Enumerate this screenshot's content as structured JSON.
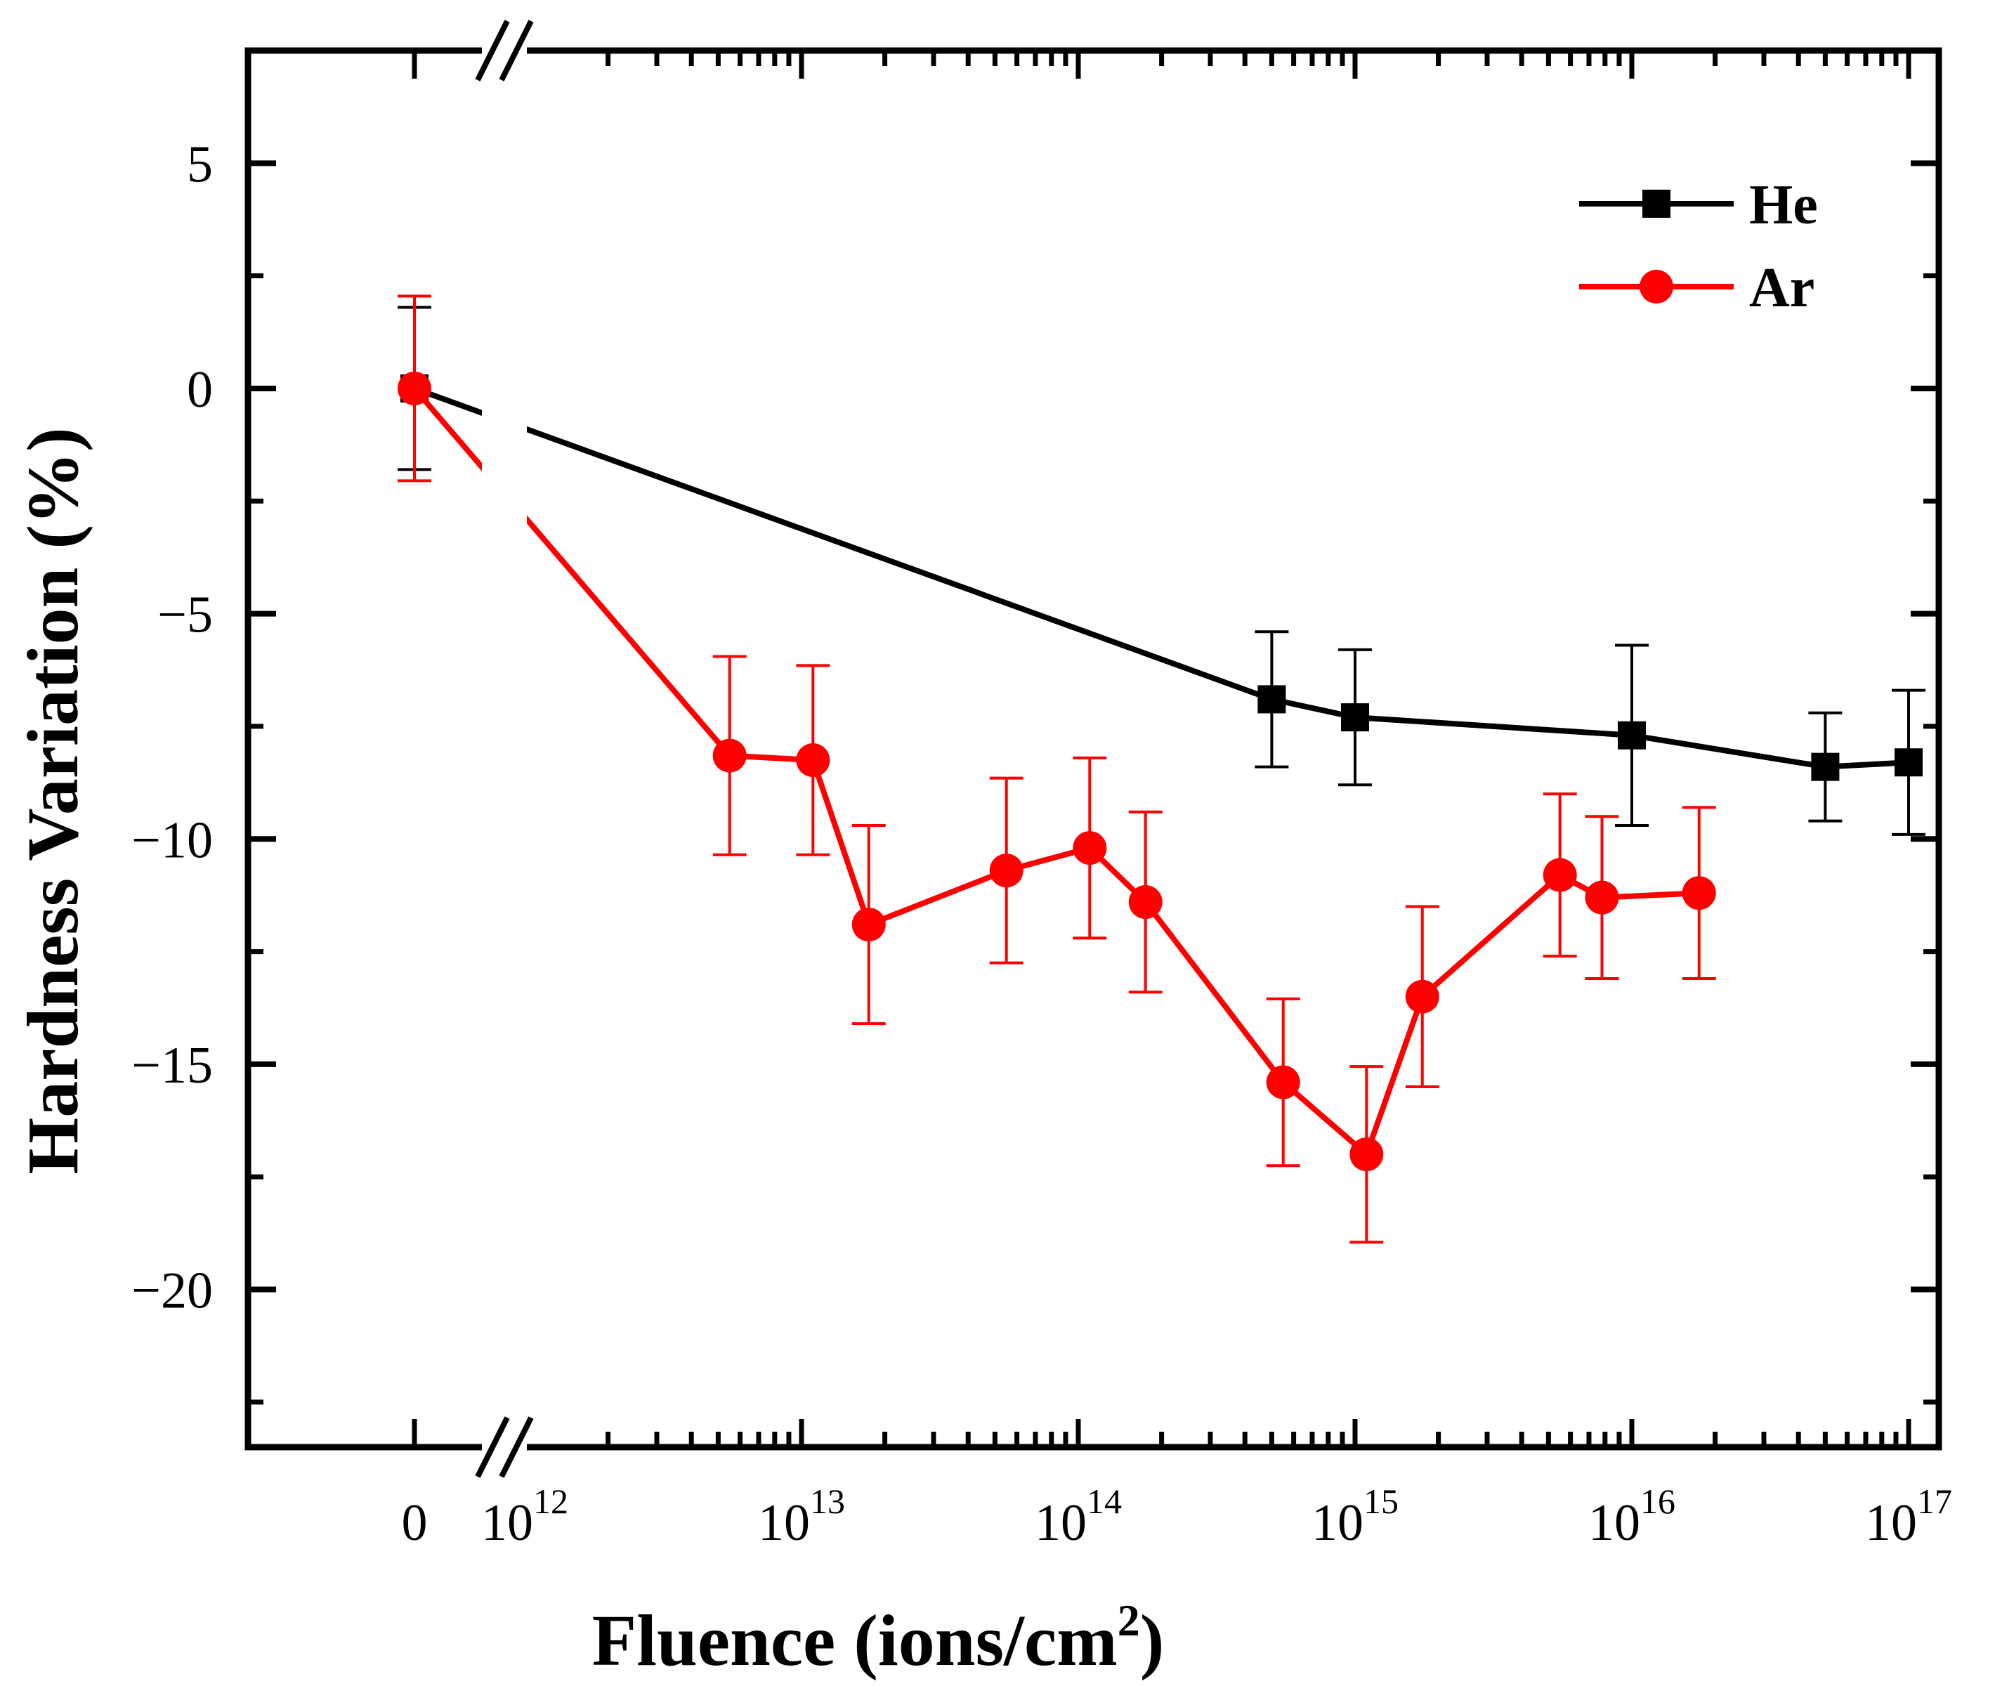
{
  "chart_data": {
    "type": "line",
    "title": "",
    "xlabel_main": "Fluence (ions/cm",
    "xlabel_sup": "2",
    "xlabel_close": ")",
    "ylabel": "Hardness Variation (%)",
    "x_scale": "log with axis break between 0 and 10^12",
    "xlim": [
      1000000000000.0,
      1e+17
    ],
    "ylim": [
      -23.5,
      7.5
    ],
    "x_ticks": [
      {
        "label": "0",
        "base": "",
        "exp": ""
      },
      {
        "label": "",
        "base": "10",
        "exp": "12"
      },
      {
        "label": "",
        "base": "10",
        "exp": "13"
      },
      {
        "label": "",
        "base": "10",
        "exp": "14"
      },
      {
        "label": "",
        "base": "10",
        "exp": "15"
      },
      {
        "label": "",
        "base": "10",
        "exp": "16"
      },
      {
        "label": "",
        "base": "10",
        "exp": "17"
      }
    ],
    "y_ticks": [
      {
        "value": 5,
        "label": "5"
      },
      {
        "value": 0,
        "label": "0"
      },
      {
        "value": -5,
        "label": "−5"
      },
      {
        "value": -10,
        "label": "−10"
      },
      {
        "value": -15,
        "label": "−15"
      },
      {
        "value": -20,
        "label": "−20"
      }
    ],
    "legend_position": "top-right",
    "series": [
      {
        "name": "He",
        "color": "#000000",
        "marker": "square",
        "points": [
          {
            "x": 0,
            "y": 0,
            "err": 1.8
          },
          {
            "x": 500000000000000.0,
            "y": -6.9,
            "err": 1.5
          },
          {
            "x": 1000000000000000.0,
            "y": -7.3,
            "err": 1.5
          },
          {
            "x": 1e+16,
            "y": -7.7,
            "err": 2.0
          },
          {
            "x": 5e+16,
            "y": -8.4,
            "err": 1.2
          },
          {
            "x": 1e+17,
            "y": -8.3,
            "err": 1.6
          }
        ]
      },
      {
        "name": "Ar",
        "color": "#ff0000",
        "marker": "circle",
        "points": [
          {
            "x": 0,
            "y": 0,
            "err": 2.05
          },
          {
            "x": 5500000000000.0,
            "y": -8.15,
            "err": 2.2
          },
          {
            "x": 11000000000000.0,
            "y": -8.25,
            "err": 2.1
          },
          {
            "x": 17500000000000.0,
            "y": -11.9,
            "err": 2.2
          },
          {
            "x": 55000000000000.0,
            "y": -10.7,
            "err": 2.05
          },
          {
            "x": 110000000000000.0,
            "y": -10.2,
            "err": 2.0
          },
          {
            "x": 175000000000000.0,
            "y": -11.4,
            "err": 2.0
          },
          {
            "x": 550000000000000.0,
            "y": -15.4,
            "err": 1.85
          },
          {
            "x": 1100000000000000.0,
            "y": -17.0,
            "err": 1.95
          },
          {
            "x": 1750000000000000.0,
            "y": -13.5,
            "err": 2.0
          },
          {
            "x": 5500000000000000.0,
            "y": -10.8,
            "err": 1.8
          },
          {
            "x": 7800000000000000.0,
            "y": -11.3,
            "err": 1.8
          },
          {
            "x": 1.75e+16,
            "y": -11.2,
            "err": 1.9
          }
        ]
      }
    ]
  }
}
